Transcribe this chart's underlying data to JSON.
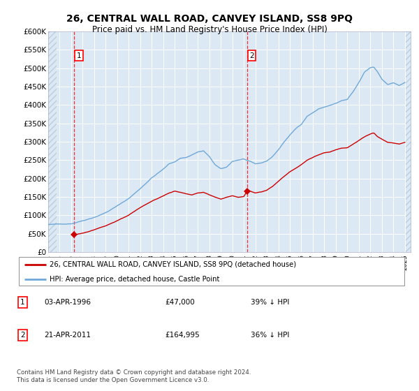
{
  "title": "26, CENTRAL WALL ROAD, CANVEY ISLAND, SS8 9PQ",
  "subtitle": "Price paid vs. HM Land Registry's House Price Index (HPI)",
  "ylabel_ticks": [
    "£0",
    "£50K",
    "£100K",
    "£150K",
    "£200K",
    "£250K",
    "£300K",
    "£350K",
    "£400K",
    "£450K",
    "£500K",
    "£550K",
    "£600K"
  ],
  "ylim": [
    0,
    600000
  ],
  "xlim_start": 1994.0,
  "xlim_end": 2025.5,
  "hpi_color": "#6fa8d8",
  "price_color": "#cc0000",
  "purchase1_year": 1996.25,
  "purchase1_price": 47000,
  "purchase2_year": 2011.29,
  "purchase2_price": 164995,
  "legend_line1": "26, CENTRAL WALL ROAD, CANVEY ISLAND, SS8 9PQ (detached house)",
  "legend_line2": "HPI: Average price, detached house, Castle Point",
  "annot1_label": "1",
  "annot1_date": "03-APR-1996",
  "annot1_price": "£47,000",
  "annot1_hpi": "39% ↓ HPI",
  "annot2_label": "2",
  "annot2_date": "21-APR-2011",
  "annot2_price": "£164,995",
  "annot2_hpi": "36% ↓ HPI",
  "footer": "Contains HM Land Registry data © Crown copyright and database right 2024.\nThis data is licensed under the Open Government Licence v3.0.",
  "background_color": "#dce9f5",
  "hatch_color": "#b8cfe0",
  "grid_color": "#ffffff"
}
